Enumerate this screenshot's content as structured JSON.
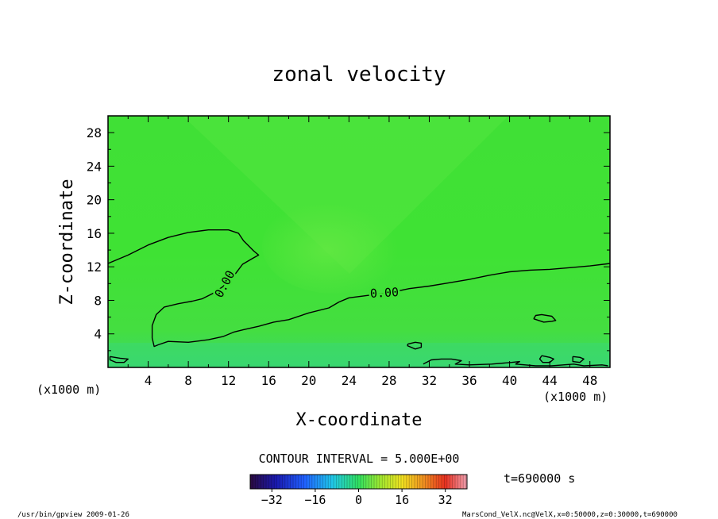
{
  "chart_data": {
    "type": "contour",
    "title": "zonal velocity",
    "xlabel": "X-coordinate",
    "ylabel": "Z-coordinate",
    "x_unit_note": "(x1000 m)",
    "y_unit_note": "(x1000 m)",
    "xlim": [
      0,
      50
    ],
    "ylim": [
      0,
      30
    ],
    "x_ticks": [
      4,
      8,
      12,
      16,
      20,
      24,
      28,
      32,
      36,
      40,
      44,
      48
    ],
    "y_ticks": [
      4,
      8,
      12,
      16,
      20,
      24,
      28
    ],
    "contour_label_values": [
      "0.00",
      "0.00"
    ],
    "contour_interval": "CONTOUR INTERVAL = 5.000E+00",
    "colorbar_ticks": [
      -32,
      -16,
      0,
      16,
      32
    ],
    "colorbar_range": [
      -40,
      40
    ],
    "time_label": "t=690000 s",
    "zero_contour_lines": [
      {
        "name": "upper-left",
        "points": [
          [
            0,
            12.4
          ],
          [
            2,
            13.4
          ],
          [
            4,
            14.6
          ],
          [
            6,
            15.5
          ],
          [
            8,
            16.1
          ],
          [
            10,
            16.4
          ],
          [
            12,
            16.4
          ],
          [
            13,
            16
          ],
          [
            13.5,
            15.1
          ],
          [
            14,
            14.5
          ],
          [
            14.5,
            13.9
          ],
          [
            15,
            13.4
          ],
          [
            14.4,
            13
          ],
          [
            13.4,
            12.3
          ],
          [
            12.4,
            10.7
          ],
          [
            11.4,
            9.6
          ],
          [
            10.4,
            8.8
          ],
          [
            9.4,
            8.2
          ],
          [
            8.4,
            7.9
          ],
          [
            7,
            7.6
          ],
          [
            5.6,
            7.2
          ],
          [
            4.8,
            6.3
          ],
          [
            4.4,
            5
          ],
          [
            4.4,
            3.5
          ],
          [
            4.6,
            2.5
          ],
          [
            5,
            2.7
          ],
          [
            6,
            3.1
          ],
          [
            8,
            3
          ],
          [
            10,
            3.3
          ],
          [
            11.5,
            3.7
          ],
          [
            12.5,
            4.2
          ],
          [
            13.5,
            4.5
          ],
          [
            15,
            4.9
          ],
          [
            16.5,
            5.4
          ],
          [
            18,
            5.7
          ],
          [
            20,
            6.5
          ],
          [
            22,
            7.1
          ],
          [
            23,
            7.8
          ],
          [
            24,
            8.3
          ],
          [
            26,
            8.6
          ],
          [
            28,
            8.9
          ],
          [
            30,
            9.4
          ],
          [
            32,
            9.7
          ],
          [
            34,
            10.1
          ],
          [
            36,
            10.5
          ],
          [
            38,
            11
          ],
          [
            40,
            11.4
          ],
          [
            42,
            11.6
          ],
          [
            44,
            11.7
          ],
          [
            46,
            11.9
          ],
          [
            48,
            12.1
          ],
          [
            50,
            12.4
          ]
        ]
      },
      {
        "name": "loop-a",
        "points": [
          [
            42.4,
            5.8
          ],
          [
            43.4,
            5.4
          ],
          [
            44.2,
            5.5
          ],
          [
            44.6,
            5.6
          ],
          [
            44.2,
            6.1
          ],
          [
            43.2,
            6.3
          ],
          [
            42.6,
            6.2
          ],
          [
            42.4,
            5.8
          ]
        ]
      },
      {
        "name": "loop-b",
        "points": [
          [
            29.8,
            2.6
          ],
          [
            30.6,
            2.2
          ],
          [
            31.2,
            2.4
          ],
          [
            31.2,
            2.9
          ],
          [
            30.6,
            3
          ],
          [
            29.9,
            2.8
          ],
          [
            29.8,
            2.6
          ]
        ]
      },
      {
        "name": "loop-c",
        "points": [
          [
            0.2,
            1.3
          ],
          [
            1.2,
            1.1
          ],
          [
            2,
            1
          ],
          [
            1.6,
            0.6
          ],
          [
            0.8,
            0.6
          ],
          [
            0.2,
            0.9
          ],
          [
            0.2,
            1.3
          ]
        ]
      },
      {
        "name": "loop-d",
        "points": [
          [
            43.2,
            1.4
          ],
          [
            44,
            1.2
          ],
          [
            44.4,
            1
          ],
          [
            44,
            0.6
          ],
          [
            43.3,
            0.6
          ],
          [
            43,
            1
          ],
          [
            43.2,
            1.4
          ]
        ]
      },
      {
        "name": "loop-e",
        "points": [
          [
            46.3,
            1.3
          ],
          [
            47,
            1.2
          ],
          [
            47.4,
            1
          ],
          [
            47,
            0.6
          ],
          [
            46.3,
            0.7
          ],
          [
            46.3,
            1.3
          ]
        ]
      },
      {
        "name": "bottom-band",
        "points": [
          [
            31.4,
            0.4
          ],
          [
            32.2,
            0.9
          ],
          [
            33.2,
            1
          ],
          [
            34.2,
            1
          ],
          [
            35.2,
            0.8
          ],
          [
            34.6,
            0.4
          ],
          [
            36,
            0.3
          ],
          [
            38.2,
            0.4
          ],
          [
            40.2,
            0.6
          ],
          [
            41,
            0.7
          ],
          [
            40.6,
            0.4
          ],
          [
            42.6,
            0.2
          ],
          [
            44.2,
            0.2
          ],
          [
            46.4,
            0.4
          ],
          [
            47.4,
            0.2
          ],
          [
            49.2,
            0.3
          ],
          [
            49.8,
            0.2
          ]
        ]
      }
    ]
  },
  "footer": {
    "left": "/usr/bin/gpview   2009-01-26",
    "right": "MarsCond_VelX.nc@VelX,x=0:50000,z=0:30000,t=690000"
  },
  "colors": {
    "field_base": "#3ee234",
    "field_light": "#5ae63e",
    "field_lower": "#4ae03a",
    "field_cyan": "#3adc78",
    "frame": "#000000"
  }
}
